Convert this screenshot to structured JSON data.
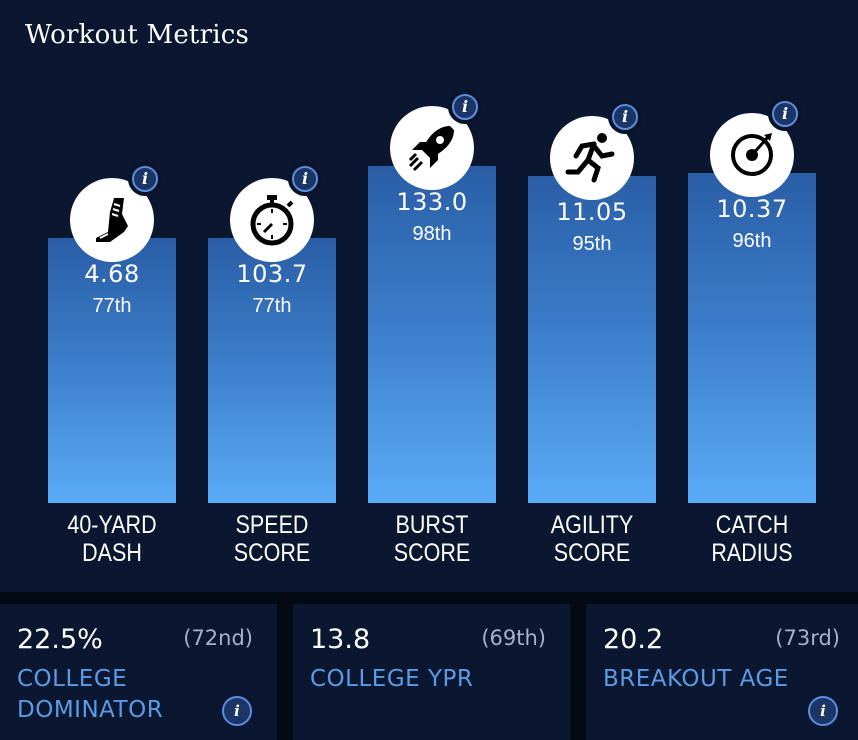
{
  "title": "Workout Metrics",
  "chart_data": {
    "type": "bar",
    "title": "Workout Metrics",
    "categories": [
      "40-YARD DASH",
      "SPEED SCORE",
      "BURST SCORE",
      "AGILITY SCORE",
      "CATCH RADIUS"
    ],
    "label_lines": [
      [
        "40-YARD",
        "DASH"
      ],
      [
        "SPEED",
        "SCORE"
      ],
      [
        "BURST",
        "SCORE"
      ],
      [
        "AGILITY",
        "SCORE"
      ],
      [
        "CATCH",
        "RADIUS"
      ]
    ],
    "values": [
      "4.68",
      "103.7",
      "133.0",
      "11.05",
      "10.37"
    ],
    "percentiles": [
      77,
      77,
      98,
      95,
      96
    ],
    "percentile_labels": [
      "77th",
      "77th",
      "98th",
      "95th",
      "96th"
    ],
    "icons": [
      "shoe-icon",
      "stopwatch-icon",
      "rocket-icon",
      "runner-icon",
      "target-icon"
    ],
    "info_glyph": "i",
    "bar_color_top": "#2a5ea6",
    "bar_color_bottom": "#5aabf5"
  },
  "cards": [
    {
      "value": "22.5%",
      "rank": "(72nd)",
      "label": [
        "COLLEGE",
        "DOMINATOR"
      ],
      "info": true
    },
    {
      "value": "13.8",
      "rank": "(69th)",
      "label": [
        "COLLEGE YPR"
      ],
      "info": false
    },
    {
      "value": "20.2",
      "rank": "(73rd)",
      "label": [
        "BREAKOUT AGE"
      ],
      "info": true
    }
  ],
  "colors": {
    "background": "#040a14",
    "panel": "#0b1730",
    "accent_text": "#5b9be6",
    "rank_text": "#a6b2c6"
  }
}
